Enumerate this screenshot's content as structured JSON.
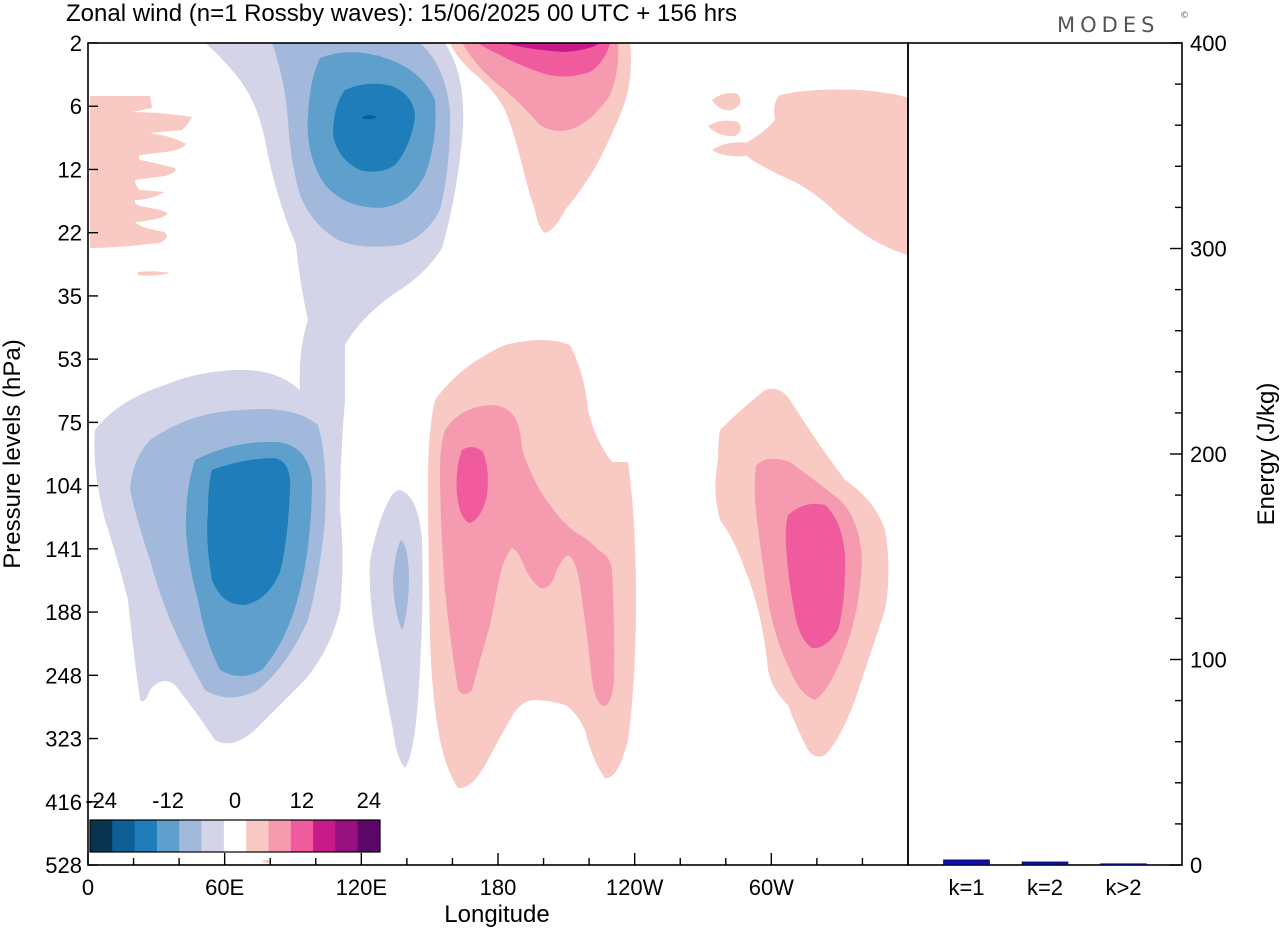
{
  "chart_data": [
    {
      "type": "contour",
      "title": "Zonal wind (n=1 Rossby waves):  15/06/2025  00 UTC  + 156 hrs",
      "xlabel": "Longitude",
      "ylabel": "Pressure levels (hPa)",
      "x_ticks": [
        "0",
        "60E",
        "120E",
        "180",
        "120W",
        "60W"
      ],
      "x_tick_values": [
        0,
        60,
        120,
        180,
        240,
        300
      ],
      "xlim": [
        0,
        360
      ],
      "y_ticks": [
        "2",
        "6",
        "12",
        "22",
        "35",
        "53",
        "75",
        "104",
        "141",
        "188",
        "248",
        "323",
        "416",
        "528"
      ],
      "y_scale": "pressure levels (log, inverted)",
      "colorbar": {
        "labels": [
          "-24",
          "-12",
          "0",
          "12",
          "24"
        ],
        "label_values": [
          -24,
          -12,
          0,
          12,
          24
        ],
        "colors": [
          "#08344f",
          "#0f5f97",
          "#1f7eba",
          "#5e9fcc",
          "#a2b9db",
          "#d4d4e8",
          "#ffffff",
          "#f9c9c4",
          "#f69ab0",
          "#ef5b9c",
          "#c81b8a",
          "#96107e",
          "#5b0767"
        ],
        "location": "lower-left"
      },
      "features": [
        {
          "name": "easterly maximum upper",
          "sign": "negative",
          "lon": 123,
          "level": 7,
          "peak": -16
        },
        {
          "name": "easterly maximum lower",
          "sign": "negative",
          "lon": 67,
          "level": 141,
          "peak": -16
        },
        {
          "name": "weak easterly",
          "sign": "negative",
          "lon": 138,
          "level": 160,
          "peak": -6
        },
        {
          "name": "westerly maximum upper",
          "sign": "positive",
          "lon": 192,
          "level": 2,
          "peak": 16
        },
        {
          "name": "westerly maximum lower west",
          "sign": "positive",
          "lon": 167,
          "level": 104,
          "peak": 10
        },
        {
          "name": "westerly maximum lower east",
          "sign": "positive",
          "lon": 315,
          "level": 150,
          "peak": 10
        }
      ]
    },
    {
      "type": "bar",
      "ylabel": "Energy (J/kg)",
      "ylim": [
        0,
        400
      ],
      "y_ticks": [
        0,
        100,
        200,
        300,
        400
      ],
      "categories": [
        "k=1",
        "k=2",
        "k>2"
      ],
      "values": [
        2.5,
        1.5,
        0.6
      ],
      "bar_color": "#1010a8"
    }
  ],
  "brand": "MODES",
  "brand_mark": "©"
}
